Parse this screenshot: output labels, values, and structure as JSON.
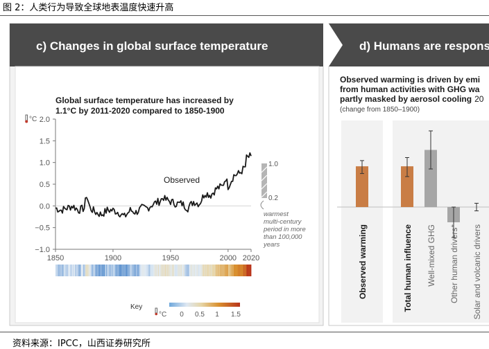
{
  "figure_title": "图 2：人类行为导致全球地表温度快速升高",
  "source_note": "资料来源：IPCC，山西证券研究所",
  "panel_c": {
    "header": "c) Changes in global surface temperature",
    "subtitle_line1": "Global surface temperature has increased by",
    "subtitle_line2": "1.1°C by 2011-2020 compared to 1850-1900",
    "unit_label": "°C",
    "observed_label": "Observed",
    "range_top_label": "1.0",
    "range_bottom_label": "0.2",
    "range_note_lines": [
      "warmest",
      "multi-century",
      "period in more",
      "than 100,000",
      "years"
    ],
    "key_label": "Key",
    "key_unit": "°C",
    "key_ticks": [
      "0",
      "0.5",
      "1",
      "1.5"
    ]
  },
  "panel_d": {
    "header": "d) Humans are respons",
    "subtitle_line1": "Observed warming is driven by emi",
    "subtitle_line2": "from human activities with GHG wa",
    "subtitle_line3": "partly masked by aerosol cooling",
    "subtitle_line3_tail": "20",
    "subtitle_line4": "(change from 1850–1900)"
  },
  "colors": {
    "header_bg": "#4a4a4a",
    "observed_line": "#1a1a1a",
    "bar_orange": "#c97d45",
    "bar_gray": "#a6a6a6",
    "range_hatch": "#9a9a9a"
  },
  "chart_data": [
    {
      "type": "line",
      "series": [
        {
          "name": "Observed",
          "x": [
            1850,
            1855,
            1860,
            1865,
            1870,
            1875,
            1877,
            1880,
            1885,
            1890,
            1895,
            1900,
            1905,
            1910,
            1915,
            1920,
            1925,
            1930,
            1935,
            1940,
            1944,
            1945,
            1950,
            1955,
            1960,
            1965,
            1970,
            1975,
            1980,
            1985,
            1990,
            1995,
            1998,
            2000,
            2005,
            2010,
            2015,
            2016,
            2020
          ],
          "y": [
            -0.05,
            -0.1,
            -0.05,
            0.0,
            -0.1,
            -0.05,
            0.25,
            -0.05,
            -0.15,
            -0.2,
            -0.1,
            -0.1,
            -0.15,
            -0.25,
            -0.1,
            -0.15,
            -0.05,
            -0.05,
            0.05,
            0.1,
            0.2,
            0.15,
            0.1,
            0.05,
            0.05,
            -0.05,
            0.1,
            0.05,
            0.3,
            0.25,
            0.4,
            0.45,
            0.65,
            0.45,
            0.7,
            0.75,
            0.9,
            1.1,
            1.15
          ]
        }
      ],
      "xlabel": "",
      "ylabel": "°C",
      "xlim": [
        1850,
        2020
      ],
      "ylim": [
        -1.0,
        2.0
      ],
      "x_ticks": [
        1850,
        1900,
        1950,
        2000,
        2020
      ],
      "y_ticks": [
        -1.0,
        -0.5,
        0.0,
        0.5,
        1.0,
        1.5,
        2.0
      ],
      "y_tick_labels": [
        "−1.0",
        "−0.5",
        "0.0",
        "0.5",
        "1.0",
        "1.5",
        "2.0"
      ],
      "annotations": [
        "Observed"
      ],
      "range_band": {
        "low": 0.2,
        "high": 1.0
      }
    },
    {
      "type": "bar",
      "categories": [
        "Observed warming",
        "Total human influence",
        "Well-mixed GHG",
        "Other human drivers*",
        "Solar and volcanic drivers"
      ],
      "values": [
        1.07,
        1.07,
        1.5,
        -0.4,
        0.0
      ],
      "error_low": [
        0.88,
        0.8,
        1.0,
        -0.8,
        -0.1
      ],
      "error_high": [
        1.22,
        1.3,
        2.0,
        0.0,
        0.1
      ],
      "bar_colors": [
        "#c97d45",
        "#c97d45",
        "#a6a6a6",
        "#a6a6a6",
        "#a6a6a6"
      ]
    }
  ]
}
